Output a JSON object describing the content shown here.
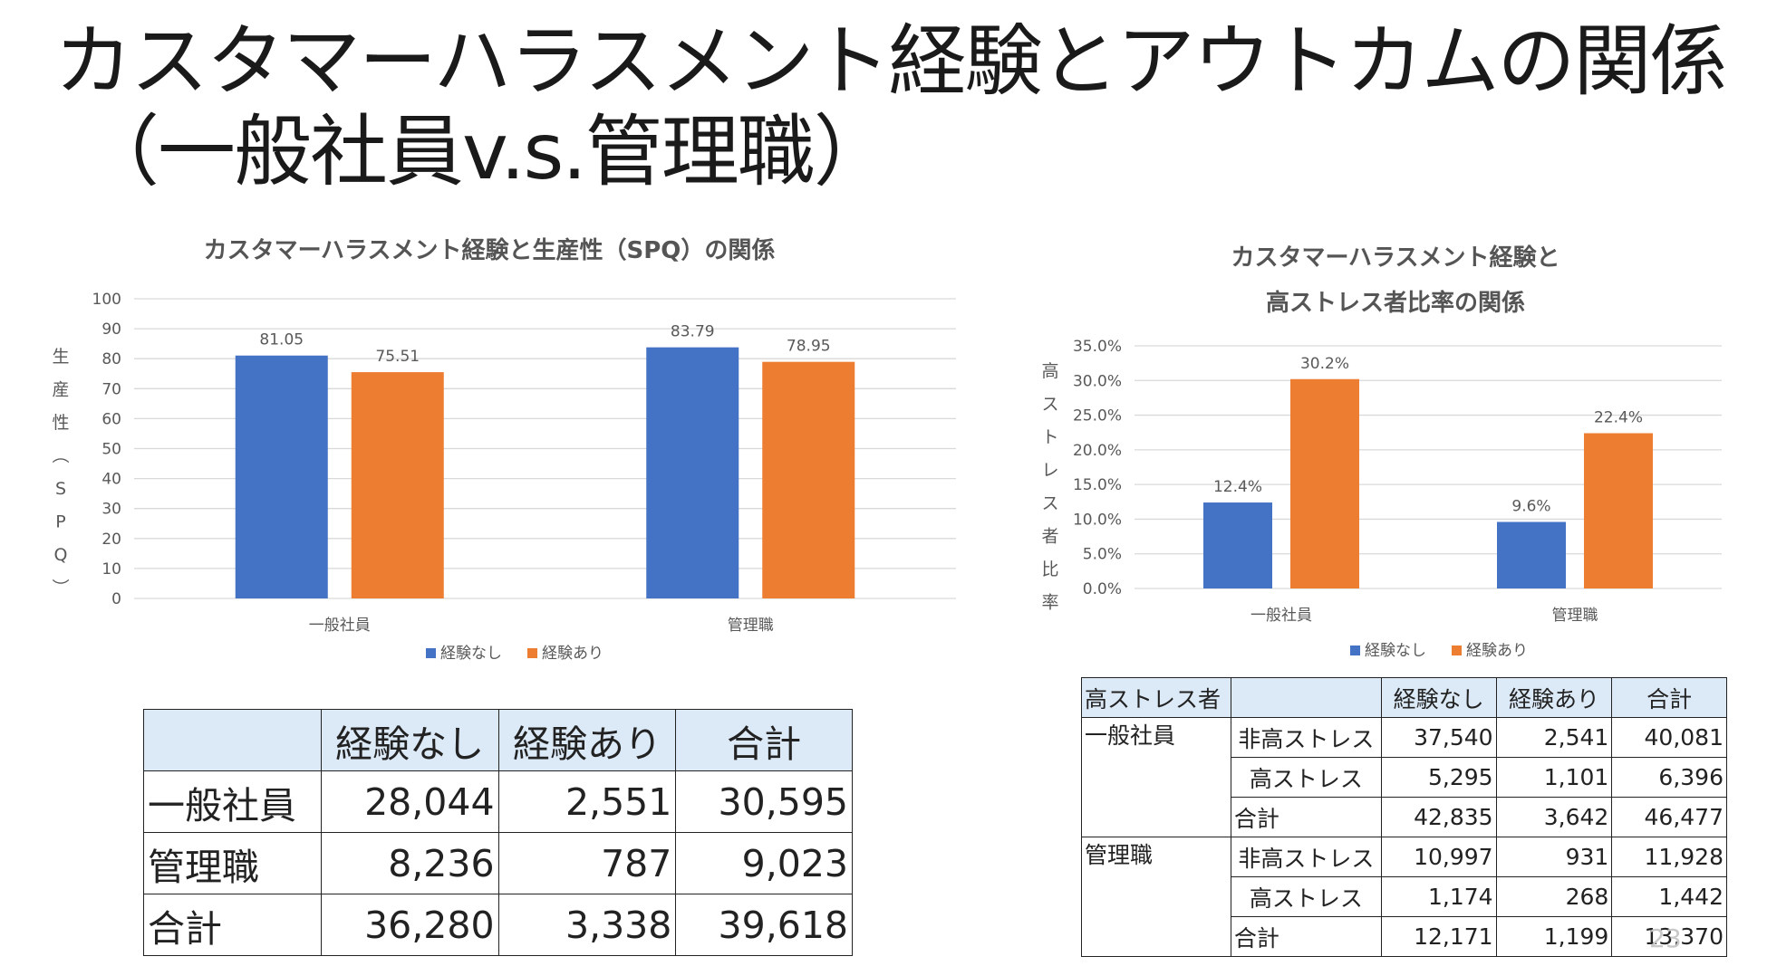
{
  "slide": {
    "title_line1": "カスタマーハラスメント経験とアウトカムの関係",
    "title_line2": "（一般社員v.s.管理職）",
    "page_number": "23"
  },
  "colors": {
    "no_experience": "#4472c4",
    "experience": "#ed7d31"
  },
  "chart_data": [
    {
      "type": "bar",
      "title": "カスタマーハラスメント経験と生産性（SPQ）の関係",
      "ylabel": "生産性（SPQ）",
      "xlabel": "",
      "categories": [
        "一般社員",
        "管理職"
      ],
      "series": [
        {
          "name": "経験なし",
          "values": [
            81.05,
            83.79
          ],
          "labels": [
            "81.05",
            "83.79"
          ]
        },
        {
          "name": "経験あり",
          "values": [
            75.51,
            78.95
          ],
          "labels": [
            "75.51",
            "78.95"
          ]
        }
      ],
      "ylim": [
        0,
        100
      ],
      "yticks": [
        "0",
        "10",
        "20",
        "30",
        "40",
        "50",
        "60",
        "70",
        "80",
        "90",
        "100"
      ],
      "grid": true,
      "legend": "bottom"
    },
    {
      "type": "bar",
      "title_line1": "カスタマーハラスメント経験と",
      "title_line2": "高ストレス者比率の関係",
      "ylabel": "高ストレス者比率",
      "xlabel": "",
      "categories": [
        "一般社員",
        "管理職"
      ],
      "series": [
        {
          "name": "経験なし",
          "values": [
            12.4,
            9.6
          ],
          "labels": [
            "12.4%",
            "9.6%"
          ]
        },
        {
          "name": "経験あり",
          "values": [
            30.2,
            22.4
          ],
          "labels": [
            "30.2%",
            "22.4%"
          ]
        }
      ],
      "ylim": [
        0,
        35
      ],
      "yticks": [
        "0.0%",
        "5.0%",
        "10.0%",
        "15.0%",
        "20.0%",
        "25.0%",
        "30.0%",
        "35.0%"
      ],
      "grid": true,
      "legend": "bottom"
    }
  ],
  "table1": {
    "headers": [
      "",
      "経験なし",
      "経験あり",
      "合計"
    ],
    "rows": [
      [
        "一般社員",
        "28,044",
        "2,551",
        "30,595"
      ],
      [
        "管理職",
        "8,236",
        "787",
        "9,023"
      ],
      [
        "合計",
        "36,280",
        "3,338",
        "39,618"
      ]
    ]
  },
  "table2": {
    "headers": [
      "高ストレス者",
      "",
      "経験なし",
      "経験あり",
      "合計"
    ],
    "groups": [
      {
        "label": "一般社員",
        "rows": [
          [
            "非高ストレス",
            "37,540",
            "2,541",
            "40,081"
          ],
          [
            "高ストレス",
            "5,295",
            "1,101",
            "6,396"
          ],
          [
            "合計",
            "42,835",
            "3,642",
            "46,477"
          ]
        ]
      },
      {
        "label": "管理職",
        "rows": [
          [
            "非高ストレス",
            "10,997",
            "931",
            "11,928"
          ],
          [
            "高ストレス",
            "1,174",
            "268",
            "1,442"
          ],
          [
            "合計",
            "12,171",
            "1,199",
            "13,370"
          ]
        ]
      }
    ]
  }
}
